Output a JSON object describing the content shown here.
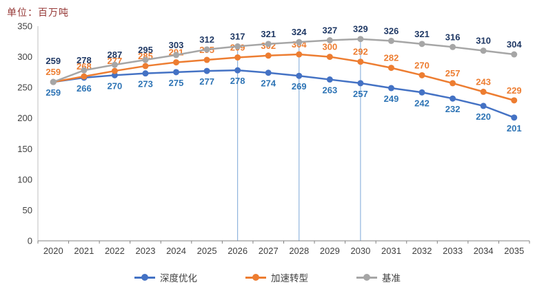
{
  "header": {
    "unit_label": "单位：百万吨"
  },
  "chart_data": {
    "type": "line",
    "x": [
      "2020",
      "2021",
      "2022",
      "2023",
      "2024",
      "2025",
      "2026",
      "2027",
      "2028",
      "2029",
      "2030",
      "2031",
      "2032",
      "2033",
      "2034",
      "2035"
    ],
    "ylim": [
      0,
      350
    ],
    "ytick_step": 50,
    "grid": false,
    "legend_position": "bottom",
    "reference_lines_x": [
      "2026",
      "2028",
      "2030"
    ],
    "reference_line_color": "#7BA7D7",
    "series": [
      {
        "name": "深度优化",
        "color": "#4472C4",
        "label_color": "#2E74B5",
        "label_position": "below",
        "values": [
          259,
          266,
          270,
          273,
          275,
          277,
          278,
          274,
          269,
          263,
          257,
          249,
          242,
          232,
          220,
          201
        ]
      },
      {
        "name": "加速转型",
        "color": "#ED7D31",
        "label_color": "#ED7D31",
        "label_position": "above",
        "values": [
          259,
          268,
          277,
          285,
          291,
          295,
          299,
          302,
          304,
          300,
          292,
          282,
          270,
          257,
          243,
          229
        ]
      },
      {
        "name": "基准",
        "color": "#A6A6A6",
        "label_color": "#1F3864",
        "label_position": "above",
        "values": [
          259,
          278,
          287,
          295,
          303,
          312,
          317,
          321,
          324,
          327,
          329,
          326,
          321,
          316,
          310,
          304
        ]
      }
    ]
  }
}
